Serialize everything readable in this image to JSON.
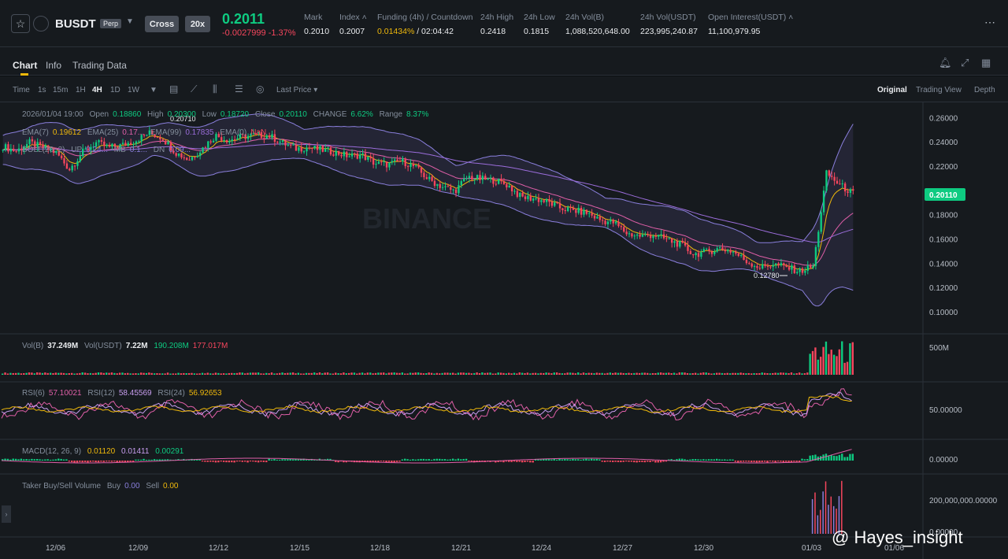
{
  "header": {
    "symbol": "BUSDT",
    "badge": "Perp",
    "margin_mode": "Cross",
    "leverage": "20x",
    "last_price": "0.2011",
    "price_change": "-0.0027999 -1.37%",
    "stats": [
      {
        "label": "Mark",
        "value": "0.2010",
        "value_color": "#eaecef"
      },
      {
        "label": "Index ˄",
        "value": "0.2007",
        "value_color": "#eaecef"
      },
      {
        "label": "Funding (4h) / Countdown",
        "value": "0.01434%",
        "value2": " / 02:04:42",
        "value_color": "#f0b90b"
      },
      {
        "label": "24h High",
        "value": "0.2418",
        "value_color": "#eaecef"
      },
      {
        "label": "24h Low",
        "value": "0.1815",
        "value_color": "#eaecef"
      },
      {
        "label": "24h Vol(B)",
        "value": "1,088,520,648.00",
        "value_color": "#eaecef"
      },
      {
        "label": "24h Vol(USDT)",
        "value": "223,995,240.87",
        "value_color": "#eaecef"
      },
      {
        "label": "Open Interest(USDT) ˄",
        "value": "11,100,979.95",
        "value_color": "#eaecef"
      }
    ]
  },
  "tabs": [
    "Chart",
    "Info",
    "Trading Data"
  ],
  "toolbar": {
    "intervals": [
      "Time",
      "1s",
      "15m",
      "1H",
      "4H",
      "1D",
      "1W"
    ],
    "active_interval": "4H",
    "last_price": "Last Price",
    "views": [
      "Original",
      "Trading View",
      "Depth"
    ],
    "active_view": "Original"
  },
  "legend": {
    "ohlc": {
      "date": "2026/01/04 19:00",
      "open_label": "Open",
      "open": "0.18860",
      "high_label": "High",
      "high": "0.20300",
      "low_label": "Low",
      "low": "0.18720",
      "close_label": "Close",
      "close": "0.20110",
      "change_label": "CHANGE",
      "change": "6.62%",
      "range_label": "Range",
      "range": "8.37%"
    },
    "ema": {
      "ema7": "EMA(7)",
      "ema7_val": "0.19612",
      "ema25": "EMA(25)",
      "ema25_val": "0.17...",
      "ema99": "EMA(99)",
      "ema99_val": "0.17835",
      "ema0": "EMA(0)",
      "ema0_val": "NaN"
    },
    "boll": {
      "label": "BOLL(20, 2)",
      "up": "UP",
      "up_val": "0.24...",
      "mb": "MB",
      "mb_val": "0.1...",
      "dn": "DN",
      "dn_val": "0.09..."
    },
    "vol": {
      "vol_b": "Vol(B)",
      "vol_b_val": "37.249M",
      "vol_usdt": "Vol(USDT)",
      "vol_usdt_val": "7.22M",
      "ma1": "190.208M",
      "ma2": "177.017M"
    },
    "rsi": {
      "rsi6": "RSI(6)",
      "rsi6_val": "57.10021",
      "rsi12": "RSI(12)",
      "rsi12_val": "58.45569",
      "rsi24": "RSI(24)",
      "rsi24_val": "56.92653"
    },
    "macd": {
      "label": "MACD(12, 26, 9)",
      "v1": "0.01120",
      "v2": "0.01411",
      "v3": "0.00291"
    },
    "taker": {
      "label": "Taker Buy/Sell Volume",
      "buy_label": "Buy",
      "buy": "0.00",
      "sell_label": "Sell",
      "sell": "0.00"
    }
  },
  "annotations": {
    "high_mark": "0.20710",
    "low_mark": "0.12780",
    "current_price_tag": "0.20110"
  },
  "watermark": "BINANCE",
  "credit": "@ Hayes_insight",
  "colors": {
    "up": "#0ecb81",
    "down": "#f6465d",
    "ema7": "#f0b90b",
    "ema25": "#e05fa8",
    "ema99": "#9b6ddb",
    "boll": "#8a7fdc"
  },
  "chart_data": {
    "type": "candlestick",
    "price_axis": [
      0.26,
      0.24,
      0.22,
      0.2,
      0.18,
      0.16,
      0.14,
      0.12,
      0.1
    ],
    "price_axis_labels": [
      "0.26000",
      "0.24000",
      "0.22000",
      "0.20000",
      "0.18000",
      "0.16000",
      "0.14000",
      "0.12000",
      "0.10000"
    ],
    "ylim": [
      0.085,
      0.27
    ],
    "x_labels": [
      "12/06",
      "12/09",
      "12/12",
      "12/15",
      "12/18",
      "12/21",
      "12/24",
      "12/27",
      "12/30",
      "01/03",
      "01/06"
    ],
    "close_path": [
      0.237,
      0.233,
      0.24,
      0.236,
      0.232,
      0.218,
      0.232,
      0.24,
      0.236,
      0.238,
      0.242,
      0.248,
      0.244,
      0.232,
      0.226,
      0.235,
      0.246,
      0.242,
      0.245,
      0.246,
      0.246,
      0.24,
      0.235,
      0.236,
      0.234,
      0.232,
      0.229,
      0.23,
      0.223,
      0.222,
      0.225,
      0.22,
      0.21,
      0.204,
      0.2,
      0.212,
      0.21,
      0.209,
      0.205,
      0.195,
      0.194,
      0.191,
      0.186,
      0.184,
      0.182,
      0.176,
      0.174,
      0.165,
      0.163,
      0.164,
      0.16,
      0.156,
      0.148,
      0.15,
      0.153,
      0.15,
      0.142,
      0.137,
      0.14,
      0.137,
      0.134,
      0.138,
      0.215,
      0.205,
      0.198
    ],
    "vol_axis_label": "500M",
    "rsi_axis_label": "50.00000",
    "macd_axis_label": "0.00000",
    "taker_axis_labels": [
      "200,000,000.00000",
      "0.00000"
    ]
  }
}
